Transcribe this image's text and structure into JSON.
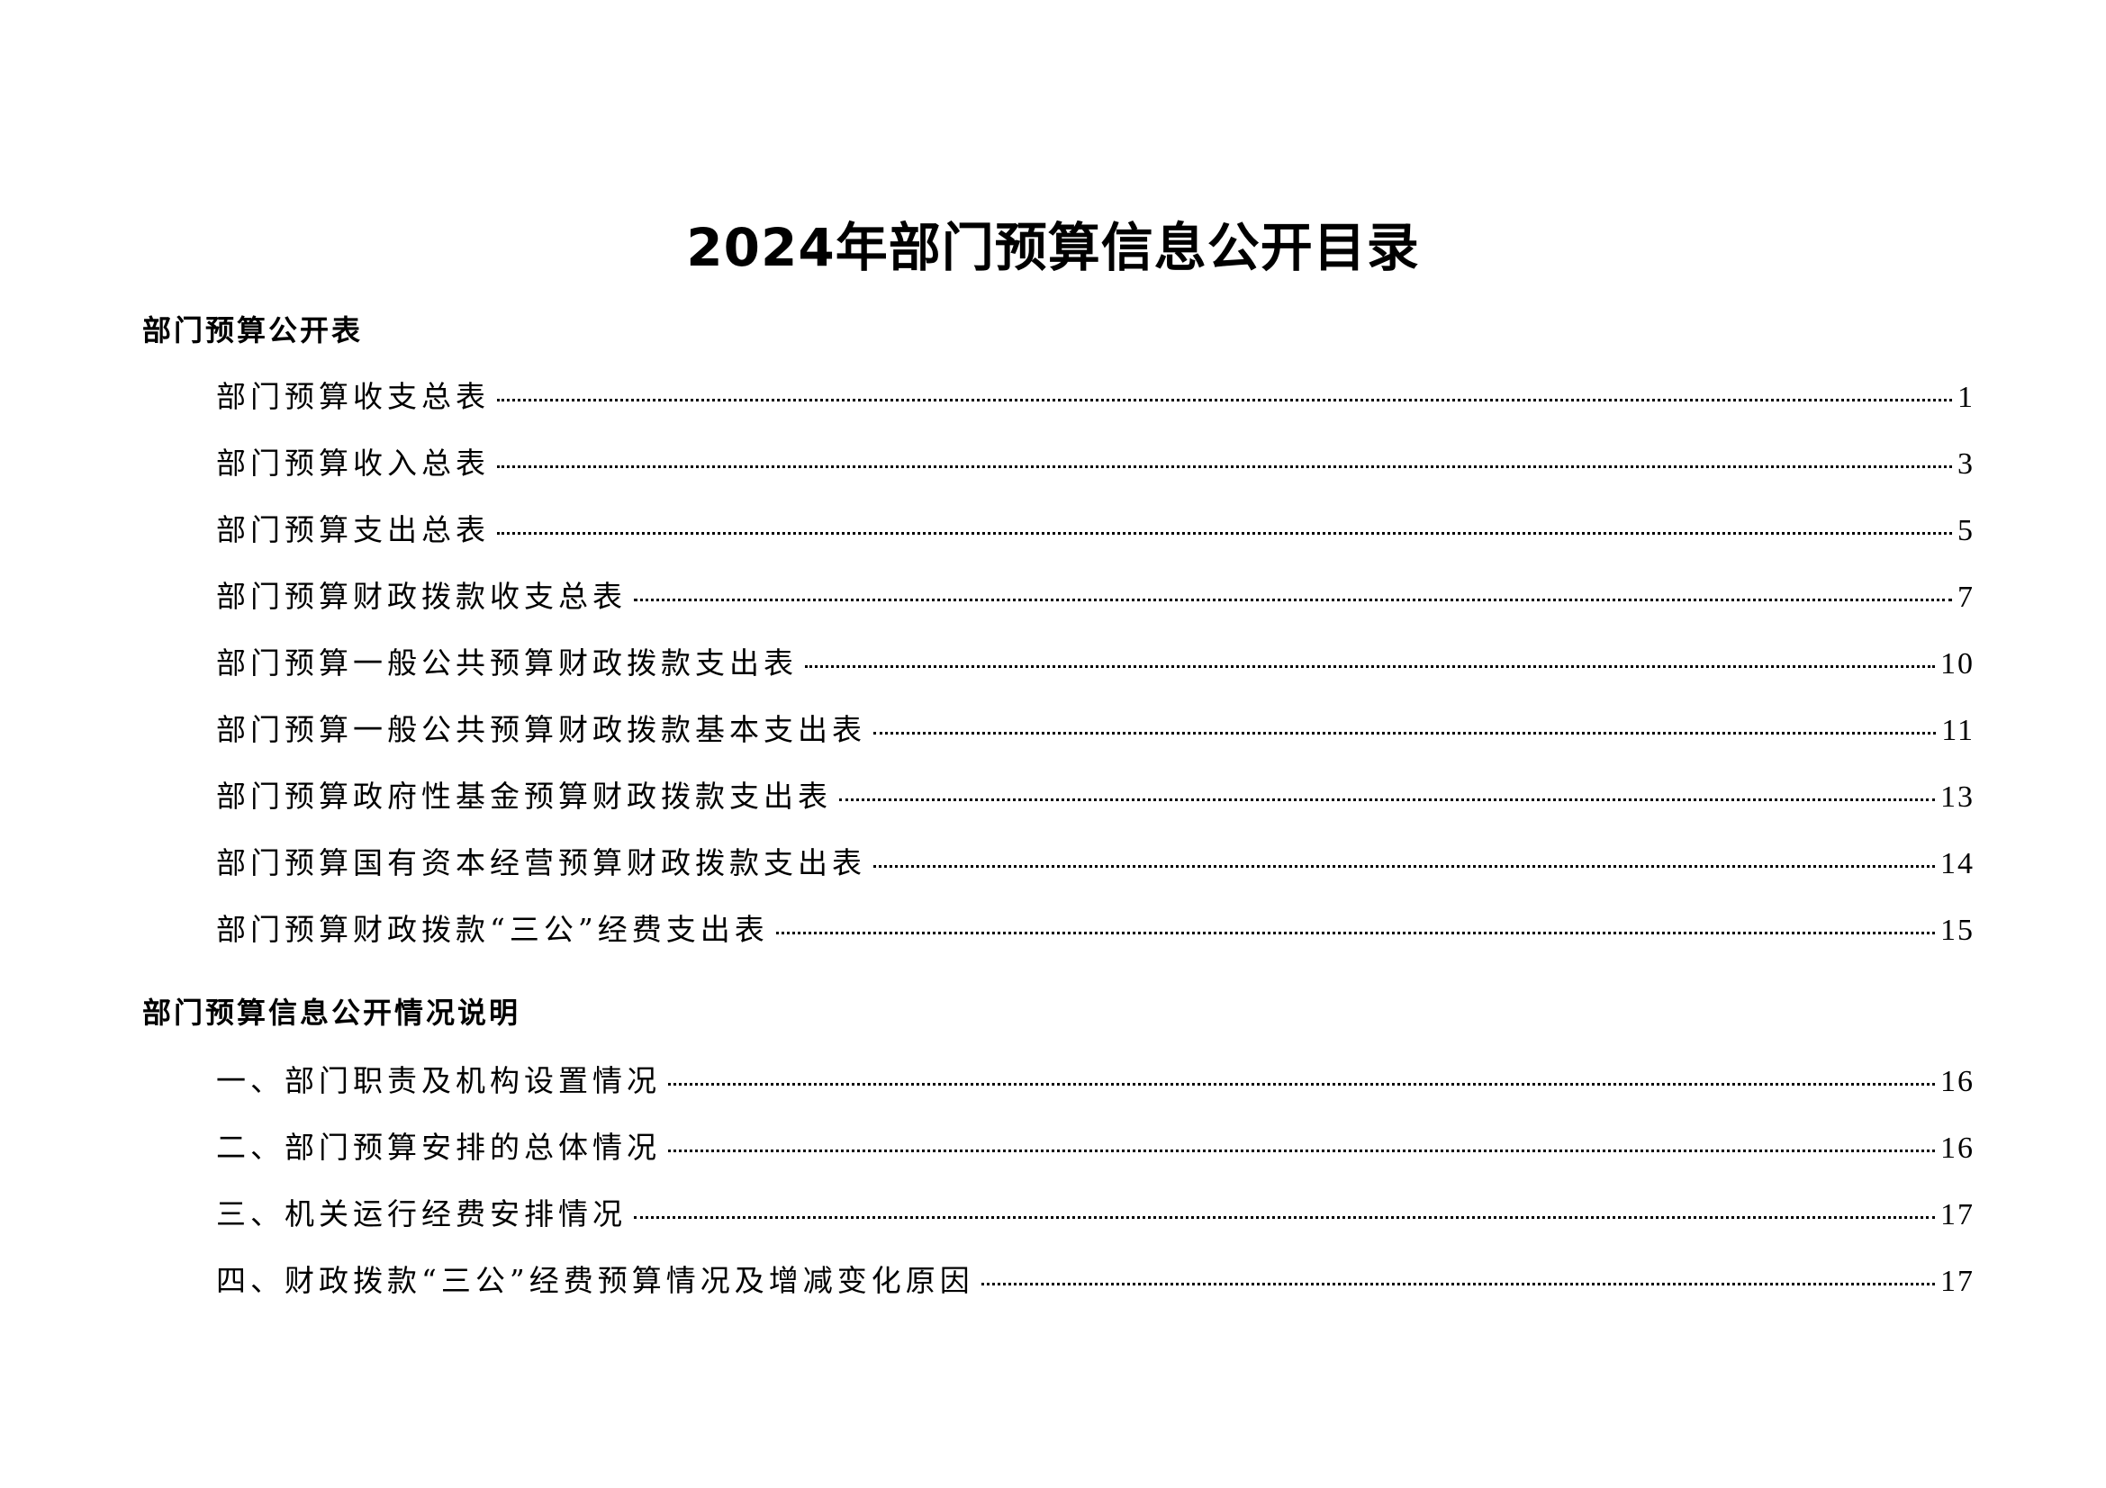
{
  "title": "2024年部门预算信息公开目录",
  "sections": [
    {
      "heading": "部门预算公开表",
      "items": [
        {
          "label": "部门预算收支总表",
          "page": "1"
        },
        {
          "label": "部门预算收入总表",
          "page": "3"
        },
        {
          "label": "部门预算支出总表",
          "page": "5"
        },
        {
          "label": "部门预算财政拨款收支总表",
          "page": "7"
        },
        {
          "label": "部门预算一般公共预算财政拨款支出表",
          "page": "10"
        },
        {
          "label": "部门预算一般公共预算财政拨款基本支出表",
          "page": "11"
        },
        {
          "label": "部门预算政府性基金预算财政拨款支出表",
          "page": "13"
        },
        {
          "label": "部门预算国有资本经营预算财政拨款支出表",
          "page": "14"
        },
        {
          "label": "部门预算财政拨款“三公”经费支出表",
          "page": "15"
        }
      ]
    },
    {
      "heading": "部门预算信息公开情况说明",
      "items": [
        {
          "label": "一、部门职责及机构设置情况",
          "page": "16"
        },
        {
          "label": "二、部门预算安排的总体情况",
          "page": "16"
        },
        {
          "label": "三、机关运行经费安排情况",
          "page": "17"
        },
        {
          "label": "四、财政拨款“三公”经费预算情况及增减变化原因",
          "page": "17"
        }
      ]
    }
  ]
}
